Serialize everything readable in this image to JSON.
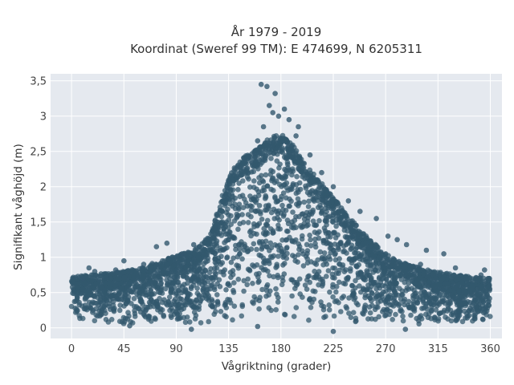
{
  "chart_data": {
    "type": "scatter",
    "title": "År 1979 - 2019",
    "subtitle": "Koordinat (Sweref 99 TM): E 474699, N 6205311",
    "xlabel": "Vågriktning (grader)",
    "ylabel": "Signifikant våghöjd (m)",
    "xlim": [
      -18,
      370
    ],
    "ylim": [
      -0.15,
      3.6
    ],
    "x_ticks": [
      0,
      45,
      90,
      135,
      180,
      225,
      270,
      315,
      360
    ],
    "x_tick_labels": [
      "0",
      "45",
      "90",
      "135",
      "180",
      "225",
      "270",
      "315",
      "360"
    ],
    "y_ticks": [
      0,
      0.5,
      1,
      1.5,
      2,
      2.5,
      3,
      3.5
    ],
    "y_tick_labels": [
      "0",
      "0,5",
      "1",
      "1,5",
      "2",
      "2,5",
      "3",
      "3,5"
    ],
    "grid": true,
    "background": "#e5e9ef",
    "marker_color": "#33586e",
    "upper_envelope": [
      [
        0,
        0.72
      ],
      [
        15,
        0.75
      ],
      [
        30,
        0.78
      ],
      [
        45,
        0.8
      ],
      [
        60,
        0.85
      ],
      [
        75,
        0.95
      ],
      [
        90,
        1.02
      ],
      [
        105,
        1.1
      ],
      [
        120,
        1.35
      ],
      [
        130,
        1.9
      ],
      [
        140,
        2.3
      ],
      [
        150,
        2.45
      ],
      [
        160,
        2.55
      ],
      [
        170,
        2.7
      ],
      [
        180,
        2.75
      ],
      [
        190,
        2.6
      ],
      [
        200,
        2.35
      ],
      [
        210,
        2.15
      ],
      [
        220,
        1.95
      ],
      [
        230,
        1.75
      ],
      [
        240,
        1.55
      ],
      [
        250,
        1.35
      ],
      [
        260,
        1.2
      ],
      [
        270,
        1.05
      ],
      [
        280,
        0.95
      ],
      [
        290,
        0.9
      ],
      [
        300,
        0.85
      ],
      [
        315,
        0.8
      ],
      [
        330,
        0.75
      ],
      [
        345,
        0.72
      ],
      [
        360,
        0.7
      ]
    ],
    "lower_envelope": 0.05,
    "sample_points": [
      [
        163,
        3.45
      ],
      [
        168,
        3.42
      ],
      [
        175,
        3.32
      ],
      [
        170,
        3.15
      ],
      [
        173,
        3.05
      ],
      [
        178,
        3.0
      ],
      [
        183,
        3.1
      ],
      [
        187,
        2.95
      ],
      [
        165,
        2.85
      ],
      [
        160,
        2.65
      ],
      [
        195,
        2.85
      ],
      [
        193,
        2.72
      ],
      [
        205,
        2.45
      ],
      [
        215,
        2.2
      ],
      [
        225,
        2.0
      ],
      [
        238,
        1.8
      ],
      [
        248,
        1.65
      ],
      [
        262,
        1.55
      ],
      [
        272,
        1.3
      ],
      [
        280,
        1.25
      ],
      [
        288,
        1.18
      ],
      [
        305,
        1.1
      ],
      [
        320,
        1.05
      ],
      [
        300,
        0.9
      ],
      [
        330,
        0.85
      ],
      [
        355,
        0.82
      ],
      [
        73,
        1.15
      ],
      [
        82,
        1.2
      ],
      [
        95,
        1.05
      ],
      [
        105,
        1.18
      ],
      [
        110,
        1.15
      ],
      [
        15,
        0.85
      ],
      [
        20,
        0.8
      ],
      [
        45,
        0.95
      ],
      [
        38,
        0.82
      ],
      [
        62,
        0.9
      ],
      [
        352,
        0.75
      ],
      [
        10,
        0.7
      ],
      [
        225,
        -0.05
      ],
      [
        287,
        -0.02
      ],
      [
        103,
        -0.02
      ],
      [
        160,
        0.02
      ],
      [
        50,
        0.03
      ]
    ]
  }
}
